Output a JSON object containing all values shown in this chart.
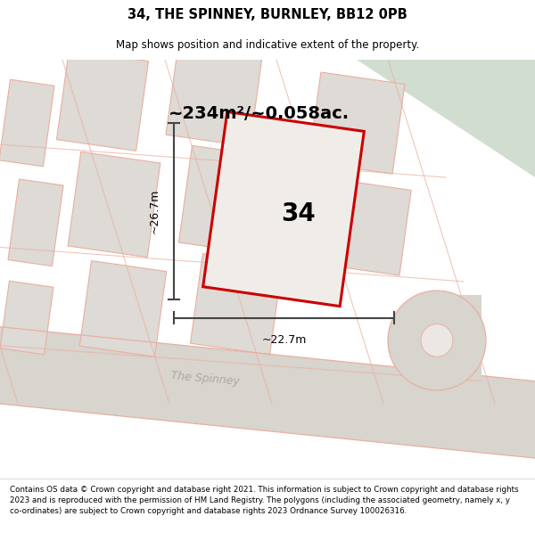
{
  "title_line1": "34, THE SPINNEY, BURNLEY, BB12 0PB",
  "title_line2": "Map shows position and indicative extent of the property.",
  "area_label": "~234m²/~0.058ac.",
  "width_label": "~22.7m",
  "height_label": "~26.7m",
  "plot_number": "34",
  "road_label": "The Spinney",
  "footer_text": "Contains OS data © Crown copyright and database right 2021. This information is subject to Crown copyright and database rights 2023 and is reproduced with the permission of HM Land Registry. The polygons (including the associated geometry, namely x, y co-ordinates) are subject to Crown copyright and database rights 2023 Ordnance Survey 100026316.",
  "map_bg": "#ebe8e3",
  "plot_fill": "#f0ede8",
  "plot_edge": "#cc0000",
  "road_color": "#d8d4ce",
  "road_line_color": "#e8b0a0",
  "other_plot_fill": "#dedad5",
  "other_plot_edge": "#e8b0a0",
  "green_area_color": "#d0ddd0",
  "dim_line_color": "#444444",
  "title_bg": "#ffffff",
  "footer_bg": "#ffffff",
  "road_label_color": "#b0a89e"
}
